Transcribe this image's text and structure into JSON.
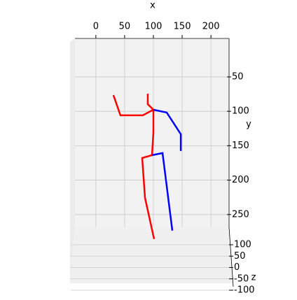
{
  "chart_data": {
    "type": "line3d",
    "x_label": "x",
    "y_label": "y",
    "z_label": "z",
    "xlim": [
      -40,
      240
    ],
    "xticks": [
      0,
      50,
      100,
      150,
      200
    ],
    "ylim": [
      0,
      300
    ],
    "yticks": [
      50,
      100,
      150,
      200,
      250
    ],
    "zlim": [
      -120,
      120
    ],
    "zticks": [
      100,
      50,
      0,
      -50,
      -100
    ],
    "grid": true,
    "series": [
      {
        "color": "#ff0000",
        "x": [
          30.5,
          42.7,
          81.7,
          100
        ],
        "values": [
          76.4,
          105.8,
          105.8,
          97.7
        ]
      },
      {
        "color": "#ff0000",
        "x": [
          90.2,
          90.2,
          100
        ],
        "values": [
          74.4,
          89.6,
          97.7
        ]
      },
      {
        "color": "#ff0000",
        "x": [
          100,
          100,
          97.6,
          80.5,
          85.4,
          101.2
        ],
        "values": [
          97.7,
          131.2,
          163.7,
          167.8,
          225.6,
          285.5
        ]
      },
      {
        "color": "#0000ff",
        "x": [
          100,
          123.2,
          147.6,
          147.6
        ],
        "values": [
          97.7,
          101.8,
          133.2,
          157.6
        ]
      },
      {
        "color": "#0000ff",
        "x": [
          97.6,
          115.9,
          132.9
        ],
        "values": [
          163.7,
          160.7,
          273.4
        ]
      }
    ]
  }
}
